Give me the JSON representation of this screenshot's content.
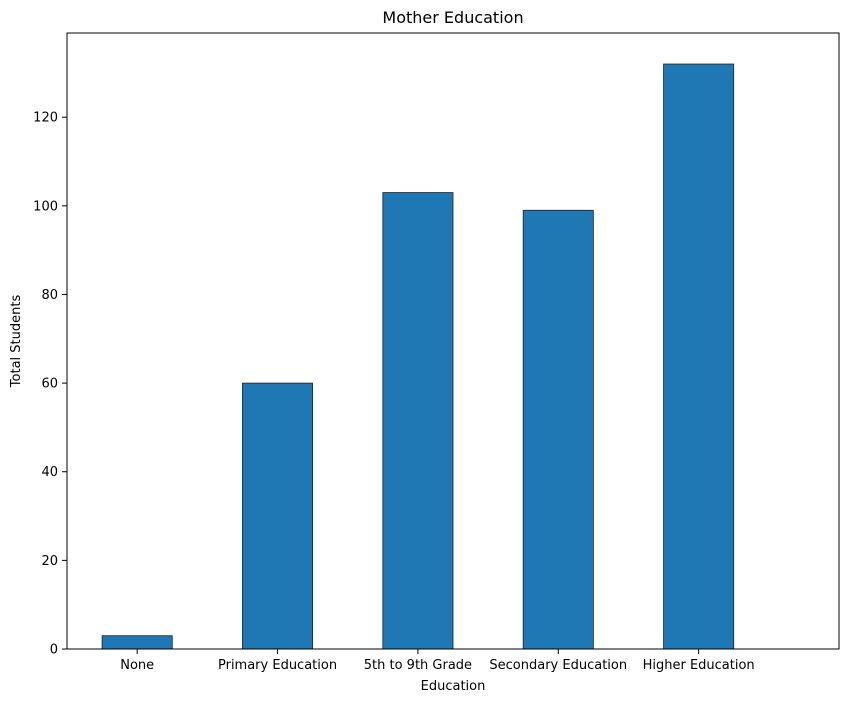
{
  "chart_data": {
    "type": "bar",
    "title": "Mother Education",
    "xlabel": "Education",
    "ylabel": "Total Students",
    "categories": [
      "None",
      "Primary Education",
      "5th to 9th Grade",
      "Secondary Education",
      "Higher Education"
    ],
    "values": [
      3,
      60,
      103,
      99,
      132
    ],
    "ylim": [
      0,
      139
    ],
    "yticks": [
      0,
      20,
      40,
      60,
      80,
      100,
      120
    ],
    "grid": false,
    "bar_color": "#1f77b4",
    "bar_edge_color": "#222222"
  }
}
